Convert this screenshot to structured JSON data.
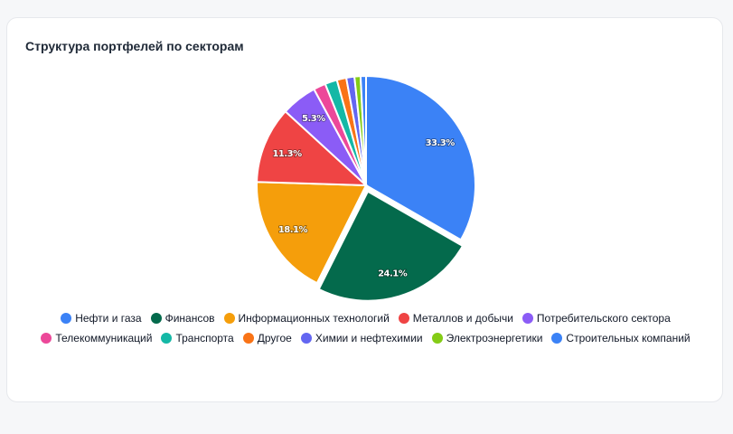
{
  "title": "Структура портфелей по секторам",
  "chart_data": {
    "type": "pie",
    "title": "Структура портфелей по секторам",
    "legend_position": "bottom",
    "slices": [
      {
        "name": "Нефти и газа",
        "value": 33.3,
        "label": "33.3%",
        "color": "#3b82f6"
      },
      {
        "name": "Финансов",
        "value": 24.1,
        "label": "24.1%",
        "color": "#046a4c",
        "exploded": true
      },
      {
        "name": "Информационных технологий",
        "value": 18.1,
        "label": "18.1%",
        "color": "#f59e0b"
      },
      {
        "name": "Металлов и добычи",
        "value": 11.3,
        "label": "11.3%",
        "color": "#ef4444"
      },
      {
        "name": "Потребительского сектора",
        "value": 5.3,
        "label": "5.3%",
        "color": "#8b5cf6"
      },
      {
        "name": "Телекоммуникаций",
        "value": 1.8,
        "label": "",
        "color": "#ec4899"
      },
      {
        "name": "Транспорта",
        "value": 1.8,
        "label": "",
        "color": "#14b8a6"
      },
      {
        "name": "Другое",
        "value": 1.4,
        "label": "",
        "color": "#f97316"
      },
      {
        "name": "Химии и нефтехимии",
        "value": 1.2,
        "label": "",
        "color": "#6366f1"
      },
      {
        "name": "Электроэнергетики",
        "value": 0.9,
        "label": "",
        "color": "#84cc16"
      },
      {
        "name": "Строительных компаний",
        "value": 0.8,
        "label": "",
        "color": "#3b82f6"
      }
    ]
  },
  "legend": {
    "rows": [
      [
        "Нефти и газа",
        "Финансов",
        "Информационных технологий",
        "Металлов и добычи",
        "Потребительского сектора"
      ],
      [
        "Телекоммуникаций",
        "Транспорта",
        "Другое",
        "Химии и нефтехимии",
        "Электроэнергетики",
        "Строительных компаний"
      ]
    ]
  }
}
